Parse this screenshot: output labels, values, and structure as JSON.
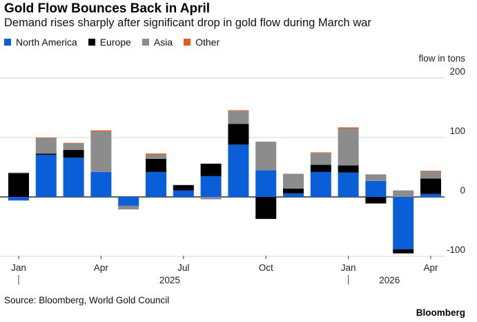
{
  "header": {
    "title": "Gold Flow Bounces Back in April",
    "subtitle": "Demand rises sharply after significant drop in gold flow during March war"
  },
  "legend": [
    {
      "label": "North America",
      "color": "#0a5fd8"
    },
    {
      "label": "Europe",
      "color": "#000000"
    },
    {
      "label": "Asia",
      "color": "#8c8c8c"
    },
    {
      "label": "Other",
      "color": "#e05c1b"
    }
  ],
  "footer": {
    "source": "Source: Bloomberg, World Gold Council",
    "brand": "Bloomberg"
  },
  "chart_data": {
    "type": "bar",
    "stacked": true,
    "unit_label": "flow in tons",
    "ylim": [
      -100,
      200
    ],
    "yticks": [
      -100,
      0,
      100,
      200
    ],
    "grid": true,
    "legend_position": "top-left",
    "categories": [
      "Jan 2025",
      "Feb 2025",
      "Mar 2025",
      "Apr 2025",
      "May 2025",
      "Jun 2025",
      "Jul 2025",
      "Aug 2025",
      "Sep 2025",
      "Oct 2025",
      "Nov 2025",
      "Dec 2025",
      "Jan 2026",
      "Feb 2026",
      "Mar 2026",
      "Apr 2026"
    ],
    "x_tick_labels": [
      {
        "index": 0,
        "label": "Jan"
      },
      {
        "index": 3,
        "label": "Apr"
      },
      {
        "index": 6,
        "label": "Jul"
      },
      {
        "index": 9,
        "label": "Oct"
      },
      {
        "index": 12,
        "label": "Jan"
      },
      {
        "index": 15,
        "label": "Apr"
      }
    ],
    "year_labels": [
      {
        "label": "2025",
        "start_index": 0,
        "end_index": 11
      },
      {
        "label": "2026",
        "start_index": 12,
        "end_index": 15
      }
    ],
    "series": [
      {
        "name": "North America",
        "color": "#0a5fd8",
        "values": [
          -6,
          71,
          66,
          42,
          -15,
          42,
          11,
          35,
          88,
          45,
          6,
          42,
          41,
          27,
          -88,
          5
        ]
      },
      {
        "name": "Europe",
        "color": "#000000",
        "values": [
          40,
          2,
          13,
          0,
          0,
          22,
          9,
          21,
          35,
          -37,
          8,
          12,
          12,
          -11,
          -7,
          26
        ]
      },
      {
        "name": "Asia",
        "color": "#8c8c8c",
        "values": [
          1,
          26,
          11,
          68,
          -6,
          7,
          0,
          -4,
          22,
          48,
          25,
          20,
          62,
          11,
          11,
          12
        ]
      },
      {
        "name": "Other",
        "color": "#e05c1b",
        "values": [
          0,
          1,
          1,
          2,
          0,
          2,
          0,
          0,
          1,
          0,
          0,
          1,
          2,
          0,
          0,
          1
        ]
      }
    ]
  }
}
